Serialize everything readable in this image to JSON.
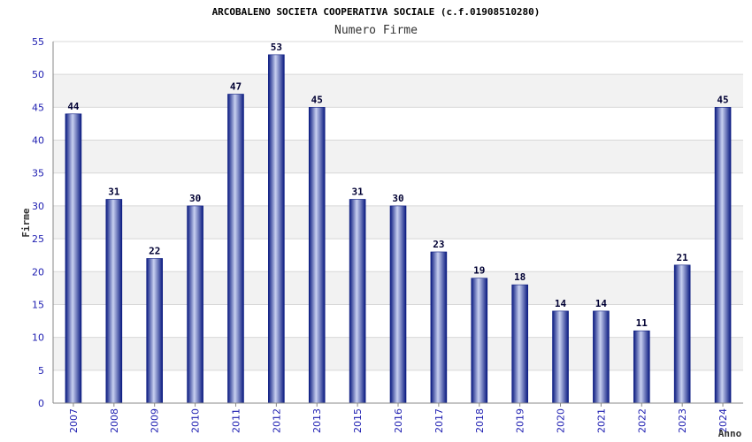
{
  "chart_data": {
    "type": "bar",
    "title": "ARCOBALENO SOCIETA COOPERATIVA SOCIALE (c.f.01908510280)",
    "subtitle": "Numero Firme",
    "xlabel": "Anno",
    "ylabel": "Firme",
    "categories": [
      "2007",
      "2008",
      "2009",
      "2010",
      "2011",
      "2012",
      "2013",
      "2015",
      "2016",
      "2017",
      "2018",
      "2019",
      "2020",
      "2021",
      "2022",
      "2023",
      "2024"
    ],
    "values": [
      44,
      31,
      22,
      30,
      47,
      53,
      45,
      31,
      30,
      23,
      19,
      18,
      14,
      14,
      11,
      21,
      45
    ],
    "ylim": [
      0,
      55
    ],
    "yticks": [
      0,
      5,
      10,
      15,
      20,
      25,
      30,
      35,
      40,
      45,
      50,
      55
    ],
    "grid": true,
    "data_labels": true
  },
  "colors": {
    "bar_dark": "#0a1a80",
    "bar_light": "#c8d0f0",
    "tick_text": "#1c1cb0",
    "band": "#f2f2f2",
    "gridline": "#d8d8d8"
  }
}
